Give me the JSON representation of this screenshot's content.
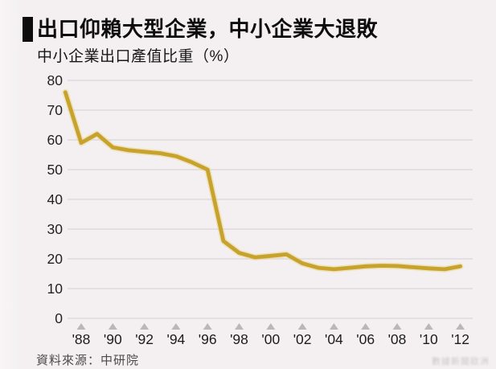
{
  "header": {
    "title": "出口仰賴大型企業，中小企業大退敗",
    "subtitle": "中小企業出口產值比重（%）"
  },
  "footer": {
    "source": "資料來源：中研院",
    "watermark": "數據新聞歐洲"
  },
  "colors": {
    "background": "#f4f0f2",
    "line": "#c7a32d",
    "line_halo": "#ead98f",
    "grid": "#d9d6d8",
    "tick_triangle": "#bab7ba",
    "y_label": "#222222",
    "x_label": "#1c1c1c",
    "title_text": "#0d0d0d",
    "source_text": "#4d494b"
  },
  "chart_data": {
    "type": "line",
    "title": "出口仰賴大型企業，中小企業大退敗",
    "ylabel": "中小企業出口產值比重（%）",
    "xlabel": "",
    "series_name": "中小企業出口產值比重",
    "x": [
      1987,
      1988,
      1989,
      1990,
      1991,
      1992,
      1993,
      1994,
      1995,
      1996,
      1997,
      1998,
      1999,
      2000,
      2001,
      2002,
      2003,
      2004,
      2005,
      2006,
      2007,
      2008,
      2009,
      2010,
      2011,
      2012
    ],
    "values": [
      76,
      59,
      62,
      57.5,
      56.5,
      56,
      55.5,
      54.5,
      52.5,
      50,
      26,
      22,
      20.5,
      21,
      21.5,
      18.5,
      17,
      16.5,
      17,
      17.5,
      17.7,
      17.6,
      17.2,
      16.8,
      16.5,
      17.5
    ],
    "ylim": [
      0,
      80
    ],
    "y_ticks": [
      80,
      70,
      60,
      50,
      40,
      30,
      20,
      10,
      0
    ],
    "x_tick_years": [
      1988,
      1990,
      1992,
      1994,
      1996,
      1998,
      2000,
      2002,
      2004,
      2006,
      2008,
      2010,
      2012
    ],
    "x_tick_labels": [
      "'88",
      "'90",
      "'92",
      "'94",
      "'96",
      "'98",
      "'00",
      "'02",
      "'04",
      "'06",
      "'08",
      "'10",
      "'12"
    ],
    "grid": true,
    "legend_position": "none"
  }
}
